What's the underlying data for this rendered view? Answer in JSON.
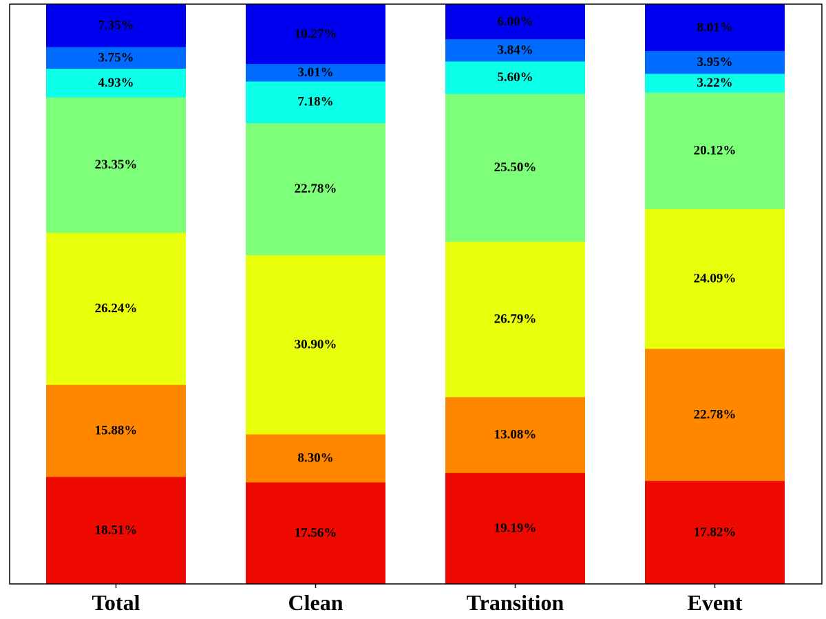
{
  "chart_data": {
    "type": "bar",
    "stacked": true,
    "categories": [
      "Total",
      "Clean",
      "Transition",
      "Event"
    ],
    "series": [
      {
        "color": "#ee0a00",
        "values": [
          18.51,
          17.56,
          19.19,
          17.82
        ],
        "labels": [
          "18.51%",
          "17.56%",
          "19.19%",
          "17.82%"
        ]
      },
      {
        "color": "#ff8700",
        "values": [
          15.88,
          8.3,
          13.08,
          22.78
        ],
        "labels": [
          "15.88%",
          "8.30%",
          "13.08%",
          "22.78%"
        ]
      },
      {
        "color": "#e8ff0c",
        "values": [
          26.24,
          30.9,
          26.79,
          24.09
        ],
        "labels": [
          "26.24%",
          "30.90%",
          "26.79%",
          "24.09%"
        ]
      },
      {
        "color": "#7dff7a",
        "values": [
          23.35,
          22.78,
          25.5,
          20.12
        ],
        "labels": [
          "23.35%",
          "22.78%",
          "25.50%",
          "20.12%"
        ]
      },
      {
        "color": "#0cffe8",
        "values": [
          4.93,
          7.18,
          5.6,
          3.22
        ],
        "labels": [
          "4.93%",
          "7.18%",
          "5.60%",
          "3.22%"
        ]
      },
      {
        "color": "#006cff",
        "values": [
          3.75,
          3.01,
          3.84,
          3.95
        ],
        "labels": [
          "3.75%",
          "3.01%",
          "3.84%",
          "3.95%"
        ]
      },
      {
        "color": "#0000f1",
        "values": [
          7.35,
          10.27,
          6.0,
          8.01
        ],
        "labels": [
          "7.35%",
          "10.27%",
          "6.00%",
          "8.01%"
        ]
      }
    ],
    "ylim": [
      0,
      100
    ],
    "grid": false,
    "legend": "none"
  }
}
